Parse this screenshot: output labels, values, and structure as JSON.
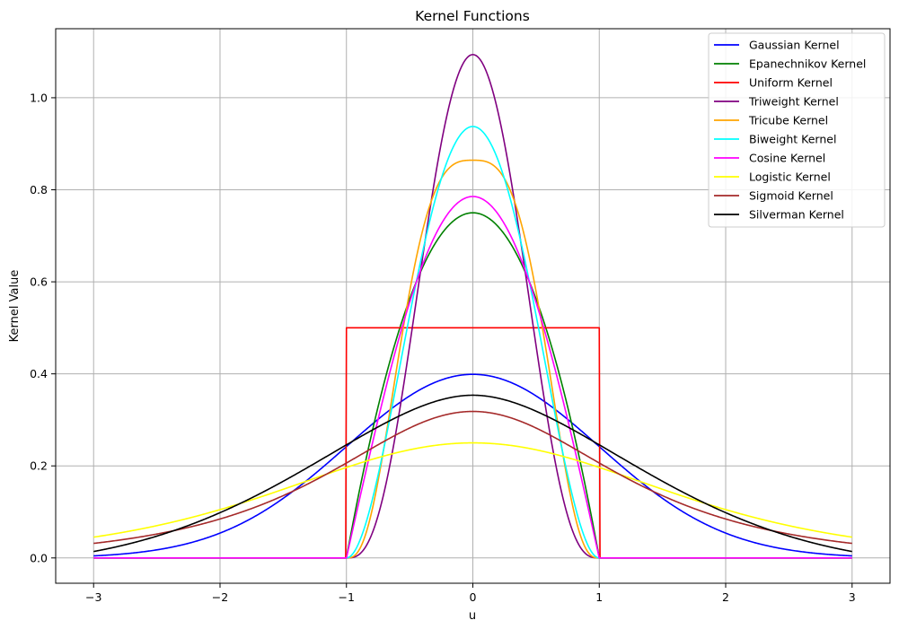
{
  "chart_data": {
    "type": "line",
    "title": "Kernel Functions",
    "xlabel": "u",
    "ylabel": "Kernel Value",
    "xlim": [
      -3.3,
      3.3
    ],
    "ylim": [
      -0.055,
      1.15
    ],
    "xticks": [
      -3,
      -2,
      -1,
      0,
      1,
      2,
      3
    ],
    "xtick_labels": [
      "−3",
      "−2",
      "−1",
      "0",
      "1",
      "2",
      "3"
    ],
    "yticks": [
      0.0,
      0.2,
      0.4,
      0.6,
      0.8,
      1.0
    ],
    "ytick_labels": [
      "0.0",
      "0.2",
      "0.4",
      "0.6",
      "0.8",
      "1.0"
    ],
    "grid": true,
    "legend_position": "top-right",
    "x_range": [
      -3,
      3
    ],
    "series": [
      {
        "name": "Gaussian Kernel",
        "color": "#0000ff",
        "formula": "gaussian"
      },
      {
        "name": "Epanechnikov Kernel",
        "color": "#008000",
        "formula": "epanechnikov"
      },
      {
        "name": "Uniform Kernel",
        "color": "#ff0000",
        "formula": "uniform"
      },
      {
        "name": "Triweight Kernel",
        "color": "#800080",
        "formula": "triweight"
      },
      {
        "name": "Tricube Kernel",
        "color": "#ffa500",
        "formula": "tricube"
      },
      {
        "name": "Biweight Kernel",
        "color": "#00ffff",
        "formula": "biweight"
      },
      {
        "name": "Cosine Kernel",
        "color": "#ff00ff",
        "formula": "cosine"
      },
      {
        "name": "Logistic Kernel",
        "color": "#ffff00",
        "formula": "logistic"
      },
      {
        "name": "Sigmoid Kernel",
        "color": "#a52a2a",
        "formula": "sigmoid"
      },
      {
        "name": "Silverman Kernel",
        "color": "#000000",
        "formula": "silverman"
      }
    ]
  }
}
